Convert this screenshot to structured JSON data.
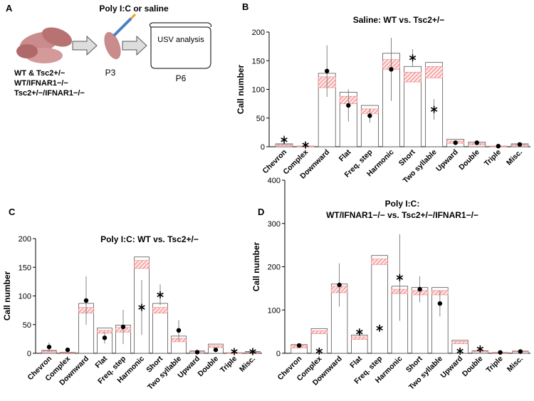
{
  "panel_a": {
    "letter": "A",
    "treatment": "Poly I:C or saline",
    "genotypes": [
      "WT & Tsc2+/−",
      "WT/IFNAR1−/−",
      "Tsc2+/−/IFNAR1−/−"
    ],
    "day1": "P3",
    "analysis": "USV analysis",
    "day2": "P6"
  },
  "chart_data": [
    {
      "letter": "B",
      "type": "bar",
      "title": "Saline: WT vs. Tsc2+/−",
      "ylabel": "Call number",
      "categories": [
        "Chevron",
        "Complex",
        "Downward",
        "Flat",
        "Freq. step",
        "Harmonic",
        "Short",
        "Two syllable",
        "Upward",
        "Double",
        "Triple",
        "Misc."
      ],
      "values": [
        5,
        1,
        128,
        95,
        72,
        163,
        140,
        147,
        13,
        8,
        1,
        5
      ],
      "band_low": [
        2,
        0,
        103,
        75,
        58,
        135,
        113,
        120,
        6,
        3,
        0,
        2
      ],
      "band_high": [
        4,
        1,
        122,
        88,
        66,
        152,
        130,
        140,
        10,
        6,
        1,
        4
      ],
      "points": [
        12,
        3,
        132,
        72,
        54,
        135,
        155,
        65,
        7,
        7,
        1,
        4
      ],
      "point_markers": [
        "star",
        "star",
        "dot",
        "dot",
        "dot",
        "dot",
        "star",
        "star",
        "dot",
        "dot",
        "dot",
        "dot"
      ],
      "errors": [
        8,
        null,
        45,
        28,
        12,
        55,
        15,
        18,
        null,
        null,
        null,
        null
      ],
      "ylim": [
        0,
        200
      ],
      "yticks": [
        0,
        50,
        100,
        150,
        200
      ],
      "band_color": "#f08080"
    },
    {
      "letter": "C",
      "type": "bar",
      "title": "Poly I:C: WT vs. Tsc2+/−",
      "ylabel": "Call number",
      "categories": [
        "Chevron",
        "Complex",
        "Downward",
        "Flat",
        "Freq. step",
        "Harmonic",
        "Short",
        "Two syllable",
        "Upward",
        "Double",
        "Triple",
        "Misc."
      ],
      "values": [
        5,
        2,
        87,
        44,
        49,
        168,
        87,
        30,
        4,
        16,
        1,
        3
      ],
      "band_low": [
        2,
        1,
        70,
        35,
        37,
        148,
        70,
        20,
        2,
        10,
        0,
        1
      ],
      "band_high": [
        4,
        2,
        80,
        40,
        45,
        162,
        80,
        26,
        3,
        13,
        1,
        2
      ],
      "points": [
        11,
        6,
        92,
        27,
        46,
        80,
        102,
        40,
        2,
        6,
        3,
        3
      ],
      "point_markers": [
        "dot",
        "dot",
        "dot",
        "dot",
        "dot",
        "star",
        "star",
        "dot",
        "dot",
        "dot",
        "star",
        "star"
      ],
      "errors": [
        8,
        2,
        42,
        10,
        30,
        48,
        18,
        18,
        null,
        3,
        null,
        null
      ],
      "ylim": [
        0,
        200
      ],
      "yticks": [
        0,
        50,
        100,
        150,
        200
      ],
      "band_color": "#f08080"
    },
    {
      "letter": "D",
      "type": "bar",
      "title": "Poly I:C:",
      "subtitle": "WT/IFNAR1−/− vs. Tsc2+/−/IFNAR1−/−",
      "ylabel": "Call number",
      "categories": [
        "Chevron",
        "Complex",
        "Downward",
        "Flat",
        "Freq. step",
        "Harmonic",
        "Short",
        "Two syllable",
        "Upward",
        "Double",
        "Triple",
        "Misc."
      ],
      "values": [
        20,
        57,
        160,
        42,
        226,
        155,
        152,
        152,
        30,
        6,
        2,
        5
      ],
      "band_low": [
        12,
        45,
        140,
        32,
        205,
        138,
        135,
        135,
        22,
        3,
        1,
        3
      ],
      "band_high": [
        18,
        52,
        155,
        38,
        218,
        148,
        145,
        145,
        27,
        5,
        2,
        4
      ],
      "points": [
        18,
        5,
        158,
        49,
        58,
        175,
        148,
        115,
        5,
        10,
        2,
        4
      ],
      "point_markers": [
        "dot",
        "star",
        "dot",
        "star",
        "star",
        "star",
        "dot",
        "dot",
        "star",
        "star",
        "dot",
        "dot"
      ],
      "errors": [
        null,
        null,
        50,
        null,
        null,
        100,
        30,
        30,
        null,
        null,
        null,
        null
      ],
      "ylim": [
        0,
        400
      ],
      "yticks": [
        0,
        100,
        200,
        300,
        400
      ],
      "band_color": "#f08080"
    }
  ]
}
